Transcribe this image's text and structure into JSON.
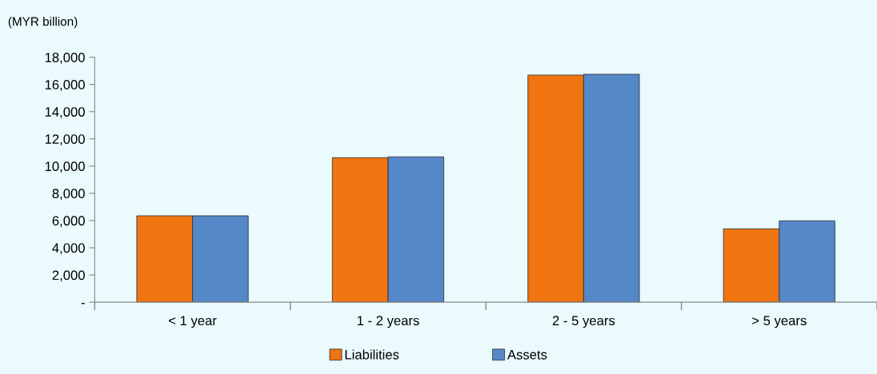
{
  "chart_data": {
    "type": "bar",
    "ylabel": "(MYR billion)",
    "categories": [
      "< 1 year",
      "1 - 2 years",
      "2 - 5 years",
      "> 5 years"
    ],
    "series": [
      {
        "name": "Liabilities",
        "color": "#f07410",
        "values": [
          6350,
          10620,
          16690,
          5390
        ]
      },
      {
        "name": "Assets",
        "color": "#5588c8",
        "values": [
          6350,
          10680,
          16750,
          5980
        ]
      }
    ],
    "ylim": [
      0,
      18000
    ],
    "yticks": [
      {
        "value": 0,
        "label": "-"
      },
      {
        "value": 2000,
        "label": "2,000"
      },
      {
        "value": 4000,
        "label": "4,000"
      },
      {
        "value": 6000,
        "label": "6,000"
      },
      {
        "value": 8000,
        "label": "8,000"
      },
      {
        "value": 10000,
        "label": "10,000"
      },
      {
        "value": 12000,
        "label": "12,000"
      },
      {
        "value": 14000,
        "label": "14,000"
      },
      {
        "value": 16000,
        "label": "16,000"
      },
      {
        "value": 18000,
        "label": "18,000"
      }
    ],
    "grid": false,
    "legend": "bottom"
  }
}
